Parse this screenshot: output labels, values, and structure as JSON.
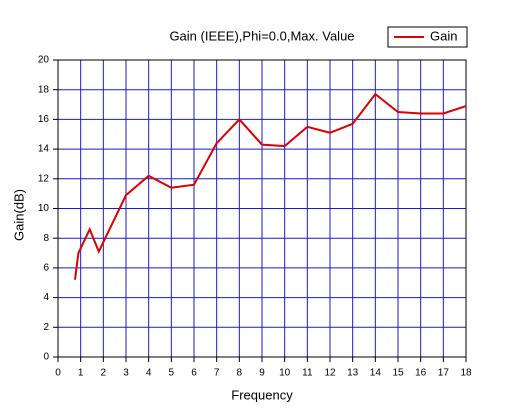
{
  "chart_data": {
    "type": "line",
    "title": "Gain (IEEE),Phi=0.0,Max. Value",
    "x_label": "Frequency",
    "y_label": "Gain(dB)",
    "x": [
      0.75,
      0.9,
      1.4,
      1.8,
      3,
      4,
      5,
      6,
      7,
      8,
      9,
      10,
      11,
      12,
      13,
      14,
      15,
      16,
      17,
      18
    ],
    "series": [
      {
        "name": "Gain",
        "color": "#dd0000",
        "values": [
          5.2,
          7.0,
          8.6,
          7.1,
          10.9,
          12.2,
          11.4,
          11.6,
          14.4,
          16.0,
          14.3,
          14.2,
          15.5,
          15.1,
          15.7,
          17.7,
          16.5,
          16.4,
          16.4,
          16.9
        ]
      }
    ],
    "xlim": [
      0,
      18
    ],
    "xticks": [
      0,
      1,
      2,
      3,
      4,
      5,
      6,
      7,
      8,
      9,
      10,
      11,
      12,
      13,
      14,
      15,
      16,
      17,
      18
    ],
    "ylim": [
      0,
      20
    ],
    "yticks": [
      0,
      2,
      4,
      6,
      8,
      10,
      12,
      14,
      16,
      18,
      20
    ],
    "grid": true,
    "grid_color": "#1a1acc",
    "legend": "top-right"
  }
}
